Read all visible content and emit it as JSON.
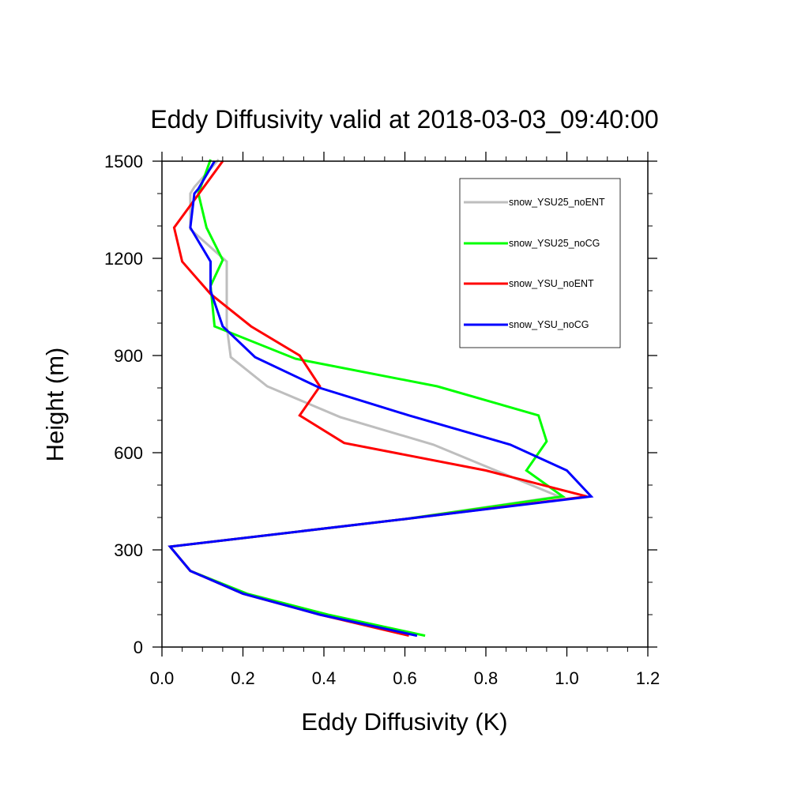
{
  "chart_data": {
    "type": "line",
    "title": "Eddy Diffusivity valid at 2018-03-03_09:40:00",
    "xlabel": "Eddy Diffusivity (K)",
    "ylabel": "Height (m)",
    "xlim": [
      0.0,
      1.2
    ],
    "ylim": [
      0,
      1500
    ],
    "xticks": [
      0.0,
      0.2,
      0.4,
      0.6,
      0.8,
      1.0,
      1.2
    ],
    "xtick_labels": [
      "0.0",
      "0.2",
      "0.4",
      "0.6",
      "0.8",
      "1.0",
      "1.2"
    ],
    "yticks": [
      0,
      300,
      600,
      900,
      1200,
      1500
    ],
    "ytick_labels": [
      "0",
      "300",
      "600",
      "900",
      "1200",
      "1500"
    ],
    "grid": false,
    "legend_position": "top-right",
    "series": [
      {
        "name": "snow_YSU25_noENT",
        "color": "#bebebe",
        "points": [
          [
            0.63,
            35
          ],
          [
            0.39,
            100
          ],
          [
            0.2,
            165
          ],
          [
            0.07,
            235
          ],
          [
            0.02,
            310
          ],
          [
            0.6,
            395
          ],
          [
            0.98,
            465
          ],
          [
            0.67,
            625
          ],
          [
            0.44,
            710
          ],
          [
            0.26,
            805
          ],
          [
            0.17,
            895
          ],
          [
            0.16,
            990
          ],
          [
            0.16,
            1190
          ],
          [
            0.07,
            1290
          ],
          [
            0.07,
            1400
          ],
          [
            0.08,
            1420
          ],
          [
            0.14,
            1505
          ]
        ]
      },
      {
        "name": "snow_YSU25_noCG",
        "color": "#00ff00",
        "points": [
          [
            0.65,
            35
          ],
          [
            0.41,
            100
          ],
          [
            0.21,
            165
          ],
          [
            0.07,
            235
          ],
          [
            0.02,
            310
          ],
          [
            0.6,
            395
          ],
          [
            0.99,
            465
          ],
          [
            0.9,
            545
          ],
          [
            0.95,
            635
          ],
          [
            0.93,
            715
          ],
          [
            0.68,
            805
          ],
          [
            0.33,
            890
          ],
          [
            0.13,
            990
          ],
          [
            0.12,
            1115
          ],
          [
            0.15,
            1195
          ],
          [
            0.11,
            1295
          ],
          [
            0.09,
            1400
          ],
          [
            0.12,
            1505
          ]
        ]
      },
      {
        "name": "snow_YSU_noENT",
        "color": "#ff0000",
        "points": [
          [
            0.61,
            35
          ],
          [
            0.39,
            100
          ],
          [
            0.2,
            165
          ],
          [
            0.07,
            235
          ],
          [
            0.02,
            310
          ],
          [
            0.6,
            395
          ],
          [
            1.05,
            465
          ],
          [
            0.8,
            545
          ],
          [
            0.45,
            630
          ],
          [
            0.34,
            715
          ],
          [
            0.39,
            805
          ],
          [
            0.34,
            900
          ],
          [
            0.22,
            990
          ],
          [
            0.12,
            1090
          ],
          [
            0.05,
            1190
          ],
          [
            0.03,
            1295
          ],
          [
            0.15,
            1500
          ]
        ]
      },
      {
        "name": "snow_YSU_noCG",
        "color": "#0000ff",
        "points": [
          [
            0.63,
            35
          ],
          [
            0.39,
            100
          ],
          [
            0.2,
            165
          ],
          [
            0.07,
            235
          ],
          [
            0.02,
            310
          ],
          [
            0.6,
            395
          ],
          [
            1.06,
            465
          ],
          [
            1.0,
            545
          ],
          [
            0.86,
            625
          ],
          [
            0.61,
            715
          ],
          [
            0.39,
            800
          ],
          [
            0.23,
            895
          ],
          [
            0.15,
            990
          ],
          [
            0.12,
            1100
          ],
          [
            0.12,
            1190
          ],
          [
            0.07,
            1295
          ],
          [
            0.08,
            1400
          ],
          [
            0.09,
            1415
          ],
          [
            0.13,
            1500
          ]
        ]
      }
    ]
  }
}
